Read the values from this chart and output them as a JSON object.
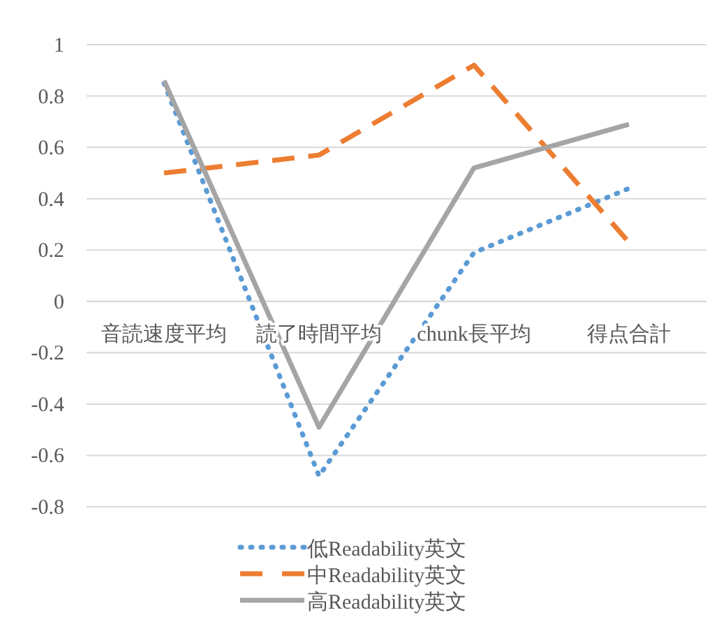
{
  "chart_data": {
    "type": "line",
    "categories": [
      "音読速度平均",
      "読了時間平均",
      "chunk長平均",
      "得点合計"
    ],
    "series": [
      {
        "name": "低Readability英文",
        "color": "#5b9bd5",
        "line_style": "dotted",
        "values": [
          0.85,
          -0.68,
          0.19,
          0.44
        ]
      },
      {
        "name": "中Readability英文",
        "color": "#ed7d31",
        "line_style": "dashed",
        "values": [
          0.5,
          0.57,
          0.92,
          0.23
        ]
      },
      {
        "name": "高Readability英文",
        "color": "#a5a5a5",
        "line_style": "solid",
        "values": [
          0.86,
          -0.49,
          0.52,
          0.69
        ]
      }
    ],
    "ylim": [
      -0.8,
      1
    ],
    "yticks": [
      -0.8,
      -0.6,
      -0.4,
      -0.2,
      0,
      0.2,
      0.4,
      0.6,
      0.8,
      1
    ],
    "grid": "y",
    "legend": "bottom",
    "marker": "none"
  }
}
